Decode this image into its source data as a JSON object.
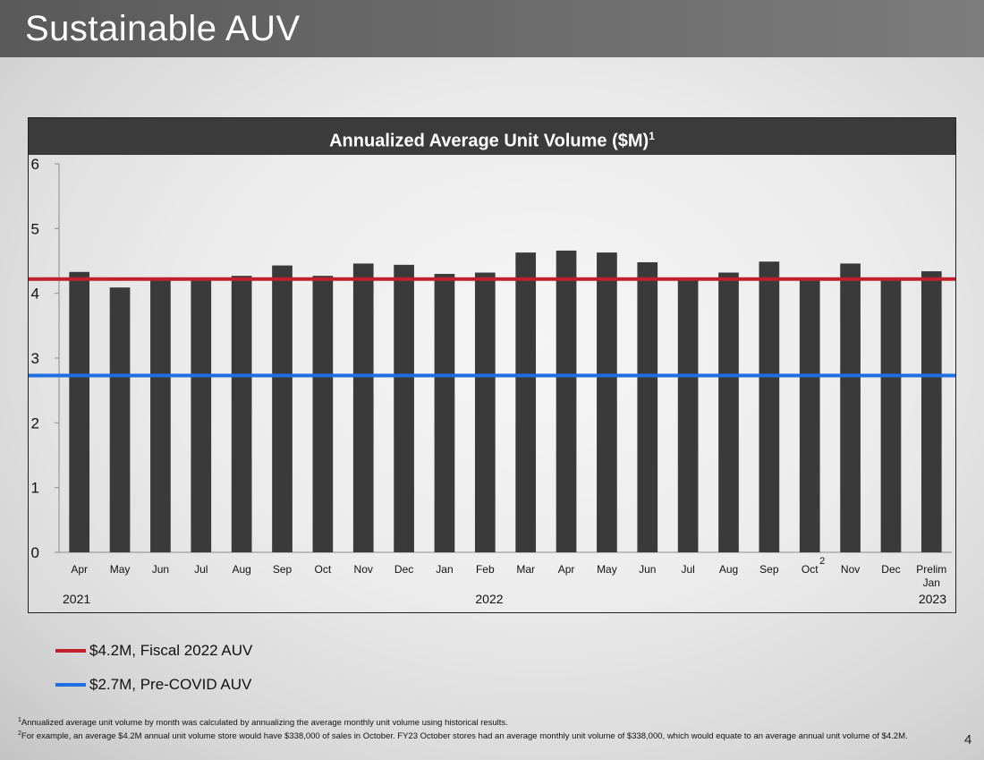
{
  "slide": {
    "title": "Sustainable AUV",
    "page_number": "4"
  },
  "chart_header": {
    "text": "Annualized Average Unit Volume ($M)",
    "superscript": "1"
  },
  "legend": [
    {
      "label": "$4.2M, Fiscal 2022 AUV",
      "color": "#c0202a"
    },
    {
      "label": "$2.7M, Pre-COVID AUV",
      "color": "#1f6fe0"
    }
  ],
  "footnotes": [
    {
      "marker": "1",
      "text": "Annualized average unit volume by month was calculated by annualizing the average monthly unit volume using historical results."
    },
    {
      "marker": "2",
      "text": "For example, an average $4.2M annual unit volume store would have $338,000 of sales in October. FY23 October stores had an average monthly unit volume of $338,000, which would equate to an average annual unit volume of $4.2M."
    }
  ],
  "chart_data": {
    "type": "bar",
    "title": "Annualized Average Unit Volume ($M)",
    "categories": [
      "Apr",
      "May",
      "Jun",
      "Jul",
      "Aug",
      "Sep",
      "Oct",
      "Nov",
      "Dec",
      "Jan",
      "Feb",
      "Mar",
      "Apr",
      "May",
      "Jun",
      "Jul",
      "Aug",
      "Sep",
      "Oct",
      "Nov",
      "Dec",
      "Prelim Jan"
    ],
    "category_superscripts": {
      "18": "2"
    },
    "values": [
      4.33,
      4.09,
      4.22,
      4.22,
      4.27,
      4.43,
      4.27,
      4.46,
      4.44,
      4.3,
      4.32,
      4.63,
      4.66,
      4.63,
      4.48,
      4.21,
      4.32,
      4.49,
      4.23,
      4.46,
      4.22,
      4.34
    ],
    "bar_color": "#3a3a3a",
    "year_labels": [
      {
        "label": "2021",
        "category_index": 0
      },
      {
        "label": "2022",
        "category_index": 9
      },
      {
        "label": "2023",
        "category_index": 21
      }
    ],
    "reference_lines": [
      {
        "name": "$4.2M, Fiscal 2022 AUV",
        "value": 4.22,
        "color": "#c0202a"
      },
      {
        "name": "$2.7M, Pre-COVID AUV",
        "value": 2.73,
        "color": "#1f6fe0"
      }
    ],
    "yticks": [
      0,
      1,
      2,
      3,
      4,
      5,
      6
    ],
    "ylim": [
      0,
      6
    ],
    "xlabel": "",
    "ylabel": ""
  }
}
